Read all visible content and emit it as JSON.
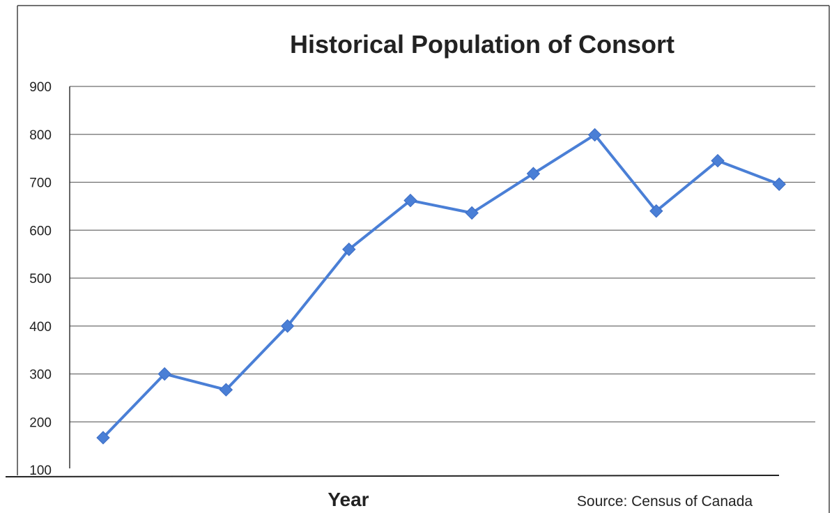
{
  "chart_data": {
    "type": "line",
    "title": "Historical Population of Consort",
    "xlabel": "Year",
    "ylabel": "",
    "source": "Source:  Census of Canada",
    "ylim": [
      100,
      900
    ],
    "yticks": [
      100,
      200,
      300,
      400,
      500,
      600,
      700,
      800,
      900
    ],
    "grid": true,
    "series": [
      {
        "color": "#4a7fd6",
        "values": [
          167,
          300,
          267,
          400,
          560,
          662,
          636,
          718,
          799,
          640,
          745,
          696
        ]
      }
    ]
  }
}
